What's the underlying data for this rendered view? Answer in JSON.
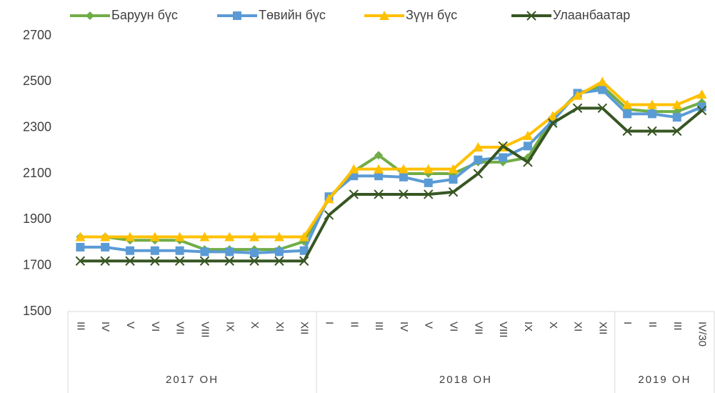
{
  "chart_data": {
    "type": "line",
    "category_groups": [
      {
        "label": "2017 ОН",
        "categories": [
          "III",
          "IV",
          "V",
          "VI",
          "VII",
          "VIII",
          "IX",
          "X",
          "XI",
          "XII"
        ]
      },
      {
        "label": "2018 ОН",
        "categories": [
          "I",
          "II",
          "III",
          "IV",
          "V",
          "VI",
          "VII",
          "VIII",
          "IX",
          "X",
          "XI",
          "XII"
        ]
      },
      {
        "label": "2019 ОН",
        "categories": [
          "I",
          "II",
          "III",
          "IV/30"
        ]
      }
    ],
    "series": [
      {
        "name": "Баруун бүс",
        "color": "#70ad47",
        "marker": "diamond",
        "values": [
          1825,
          1825,
          1810,
          1810,
          1810,
          1770,
          1770,
          1770,
          1770,
          1805,
          1990,
          2110,
          2180,
          2100,
          2100,
          2100,
          2150,
          2150,
          2170,
          2340,
          2450,
          2480,
          2380,
          2370,
          2370,
          2410
        ]
      },
      {
        "name": "Төвийн бүс",
        "color": "#5b9bd5",
        "marker": "square",
        "values": [
          1780,
          1780,
          1765,
          1765,
          1765,
          1760,
          1760,
          1755,
          1760,
          1765,
          2000,
          2090,
          2090,
          2085,
          2060,
          2075,
          2160,
          2170,
          2220,
          2330,
          2450,
          2465,
          2360,
          2360,
          2345,
          2390
        ]
      },
      {
        "name": "Зүүн бүс",
        "color": "#ffc000",
        "marker": "triangle",
        "values": [
          1825,
          1825,
          1825,
          1825,
          1825,
          1825,
          1825,
          1825,
          1825,
          1825,
          1990,
          2120,
          2120,
          2120,
          2120,
          2120,
          2215,
          2215,
          2265,
          2350,
          2440,
          2500,
          2400,
          2400,
          2400,
          2445
        ]
      },
      {
        "name": "Улаанбаатар",
        "color": "#375623",
        "marker": "x",
        "values": [
          1720,
          1720,
          1720,
          1720,
          1720,
          1720,
          1720,
          1720,
          1720,
          1720,
          1920,
          2010,
          2010,
          2010,
          2010,
          2020,
          2100,
          2220,
          2150,
          2320,
          2385,
          2385,
          2285,
          2285,
          2285,
          2375
        ]
      }
    ],
    "ylim": [
      1500,
      2700
    ],
    "yticks": [
      1500,
      1700,
      1900,
      2100,
      2300,
      2500,
      2700
    ],
    "legend": "top"
  }
}
